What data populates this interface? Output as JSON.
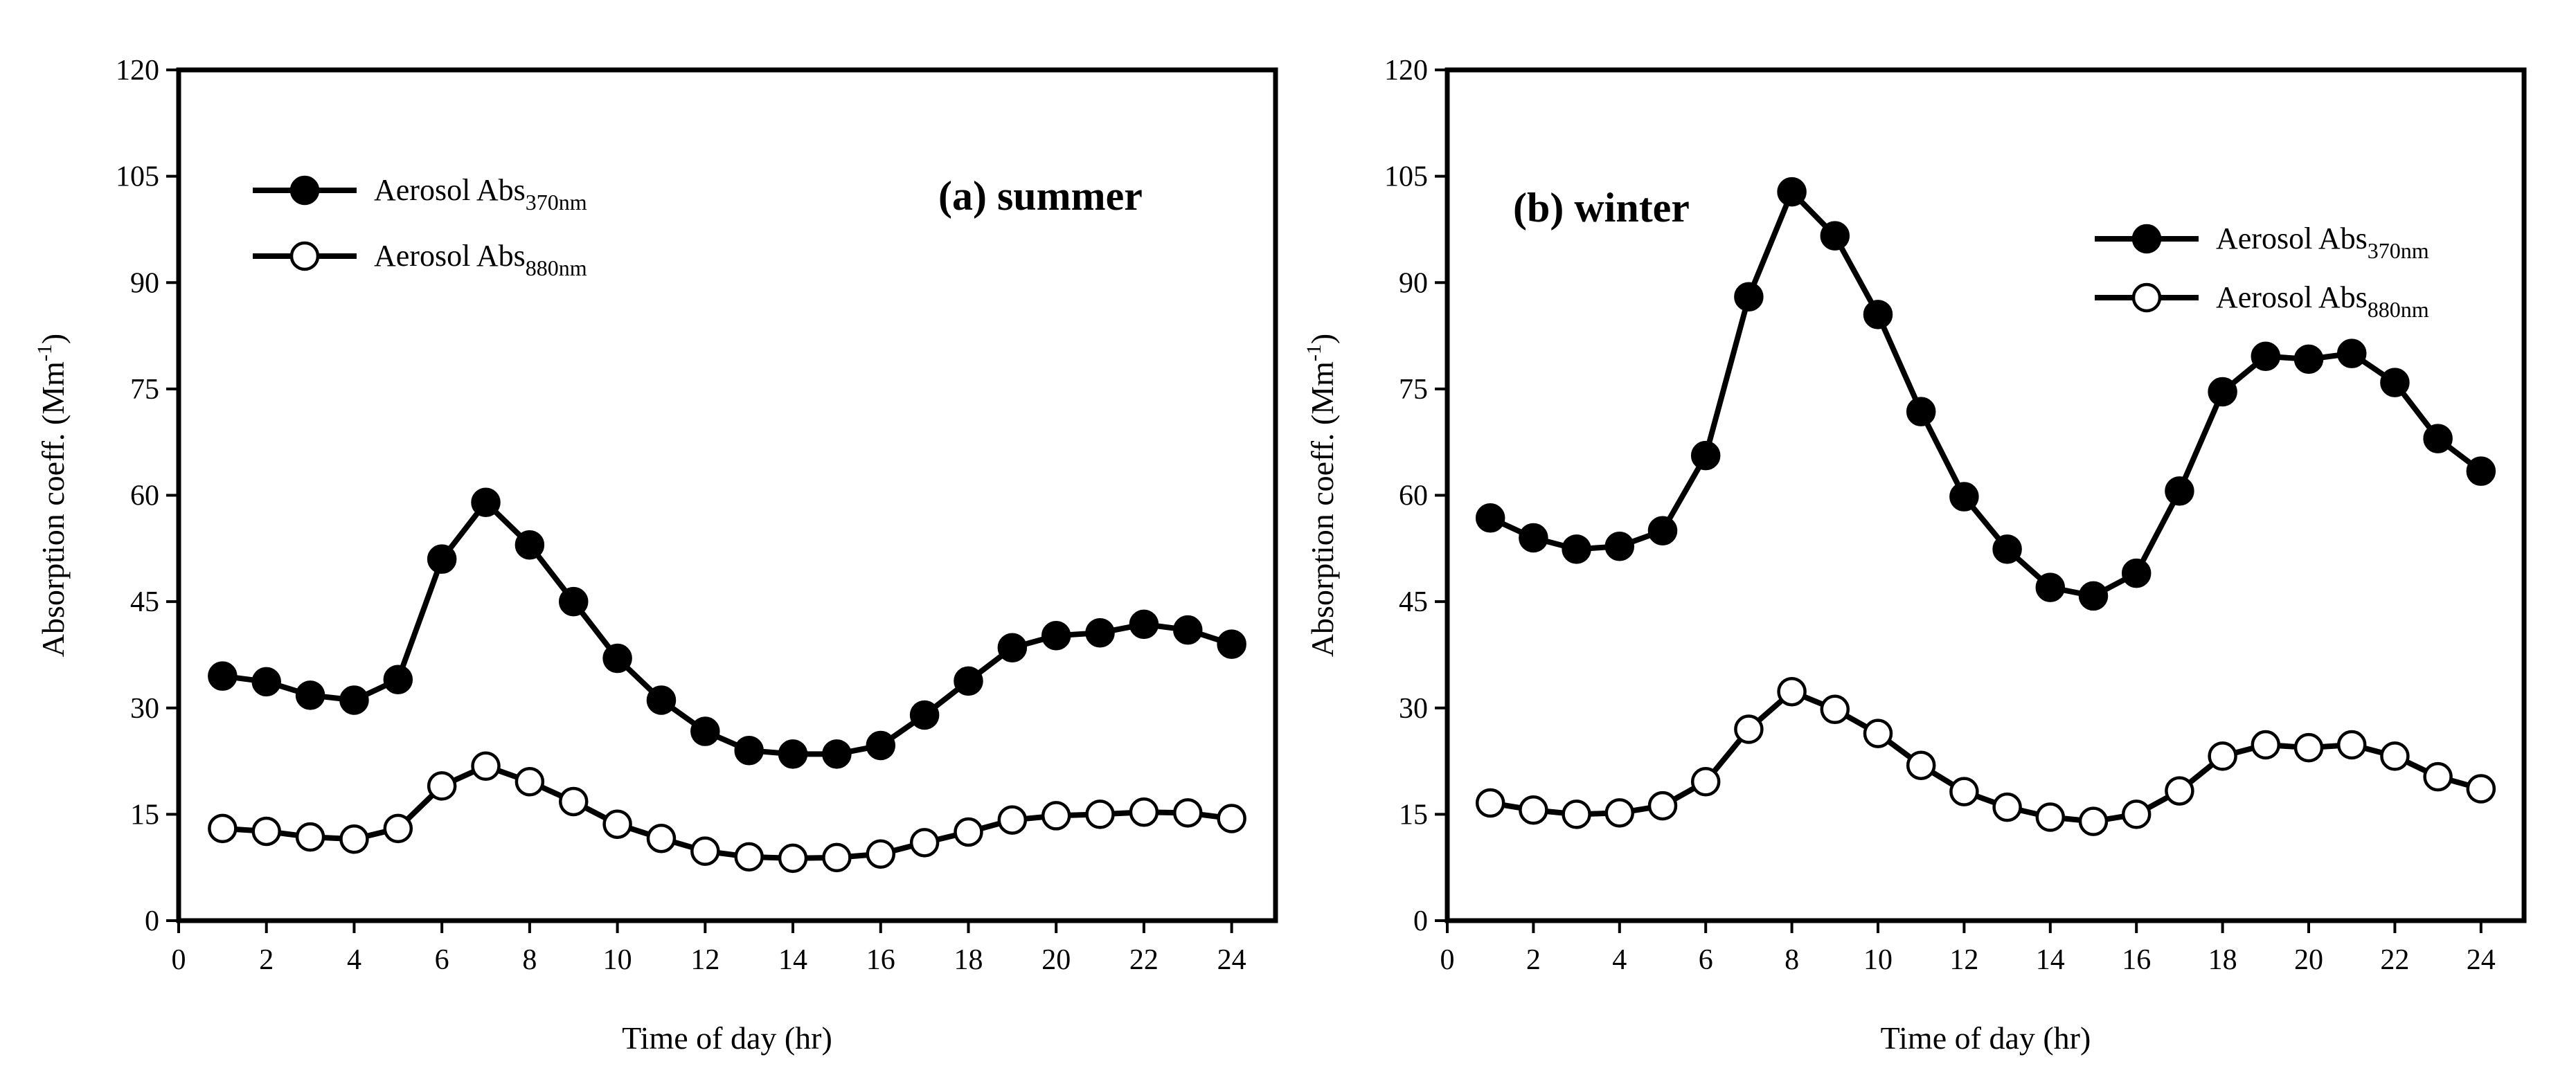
{
  "chart_data": [
    {
      "type": "line",
      "panel_label": "(a) summer",
      "xlabel": "Time of day (hr)",
      "ylabel": "Absorption coeff. (Mm",
      "ylabel_sup": "-1",
      "ylabel_close": ")",
      "xlim": [
        0,
        25
      ],
      "ylim": [
        0,
        120
      ],
      "x_ticks": [
        0,
        2,
        4,
        6,
        8,
        10,
        12,
        14,
        16,
        18,
        20,
        22,
        24
      ],
      "y_ticks": [
        0,
        15,
        30,
        45,
        60,
        75,
        90,
        105,
        120
      ],
      "legend_position": "top-left",
      "x": [
        1,
        2,
        3,
        4,
        5,
        6,
        7,
        8,
        9,
        10,
        11,
        12,
        13,
        14,
        15,
        16,
        17,
        18,
        19,
        20,
        21,
        22,
        23,
        24
      ],
      "series": [
        {
          "name": "Aerosol Abs",
          "subscript": "370nm",
          "marker": "filled",
          "values": [
            34.5,
            33.7,
            31.8,
            31.1,
            34.0,
            51.0,
            59.0,
            53.0,
            45.0,
            37.0,
            31.1,
            26.7,
            24.0,
            23.5,
            23.5,
            24.7,
            29.0,
            33.8,
            38.5,
            40.2,
            40.6,
            41.8,
            41.0,
            39.0
          ]
        },
        {
          "name": "Aerosol Abs",
          "subscript": "880nm",
          "marker": "open",
          "values": [
            13.0,
            12.6,
            11.8,
            11.5,
            13.0,
            19.0,
            21.8,
            19.6,
            16.8,
            13.6,
            11.6,
            9.8,
            9.0,
            8.8,
            8.9,
            9.4,
            11.0,
            12.5,
            14.2,
            14.8,
            15.0,
            15.3,
            15.2,
            14.4
          ]
        }
      ]
    },
    {
      "type": "line",
      "panel_label": "(b) winter",
      "xlabel": "Time of day (hr)",
      "ylabel": "Absorption coeff. (Mm",
      "ylabel_sup": "-1",
      "ylabel_close": ")",
      "xlim": [
        0,
        25
      ],
      "ylim": [
        0,
        120
      ],
      "x_ticks": [
        0,
        2,
        4,
        6,
        8,
        10,
        12,
        14,
        16,
        18,
        20,
        22,
        24
      ],
      "y_ticks": [
        0,
        15,
        30,
        45,
        60,
        75,
        90,
        105,
        120
      ],
      "legend_position": "top-right",
      "x": [
        1,
        2,
        3,
        4,
        5,
        6,
        7,
        8,
        9,
        10,
        11,
        12,
        13,
        14,
        15,
        16,
        17,
        18,
        19,
        20,
        21,
        22,
        23,
        24
      ],
      "series": [
        {
          "name": "Aerosol Abs",
          "subscript": "370nm",
          "marker": "filled",
          "values": [
            56.8,
            54.0,
            52.4,
            52.8,
            55.0,
            65.6,
            88.0,
            102.8,
            96.6,
            85.5,
            71.8,
            59.8,
            52.4,
            47.0,
            45.8,
            49.0,
            60.6,
            74.6,
            79.6,
            79.2,
            80.0,
            75.9,
            68.0,
            63.4
          ]
        },
        {
          "name": "Aerosol Abs",
          "subscript": "880nm",
          "marker": "open",
          "values": [
            16.6,
            15.6,
            15.0,
            15.2,
            16.2,
            19.6,
            27.0,
            32.3,
            29.8,
            26.4,
            21.9,
            18.2,
            16.0,
            14.6,
            14.0,
            15.0,
            18.3,
            23.2,
            24.8,
            24.4,
            24.8,
            23.2,
            20.3,
            18.6
          ]
        }
      ]
    }
  ]
}
